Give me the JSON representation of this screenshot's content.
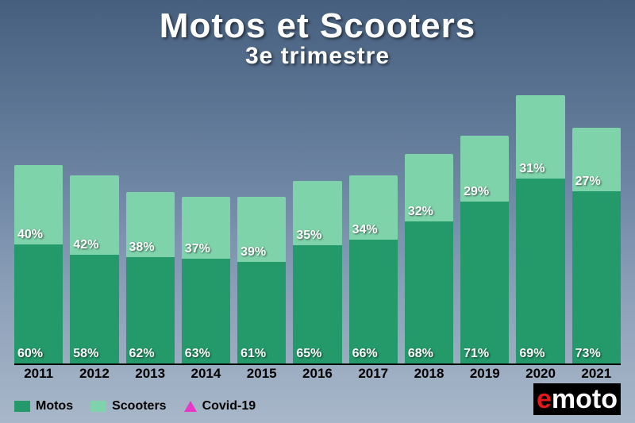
{
  "title": "Motos et Scooters",
  "subtitle": "3e trimestre",
  "title_fontsize": 44,
  "subtitle_fontsize": 30,
  "chart": {
    "type": "bar-stacked-100",
    "categories": [
      "2011",
      "2012",
      "2013",
      "2014",
      "2015",
      "2016",
      "2017",
      "2018",
      "2019",
      "2020",
      "2021"
    ],
    "motos_pct": [
      60,
      58,
      62,
      63,
      61,
      65,
      66,
      68,
      71,
      69,
      73
    ],
    "scooters_pct": [
      40,
      42,
      38,
      37,
      39,
      35,
      34,
      32,
      29,
      31,
      27
    ],
    "bar_totals_rel": [
      0.74,
      0.7,
      0.64,
      0.62,
      0.62,
      0.68,
      0.7,
      0.78,
      0.85,
      1.0,
      0.88
    ],
    "motos_color": "#24996a",
    "scooters_color": "#7fd3ab",
    "pct_fontsize": 16,
    "xlabel_fontsize": 17,
    "covid_marker_index": 9,
    "covid_marker_color": "#e836c8"
  },
  "legend": {
    "items": [
      {
        "label": "Motos",
        "color": "#24996a",
        "shape": "square"
      },
      {
        "label": "Scooters",
        "color": "#7fd3ab",
        "shape": "square"
      },
      {
        "label": "Covid-19",
        "color": "#e836c8",
        "shape": "triangle"
      }
    ],
    "fontsize": 16
  },
  "logo": {
    "text_e": "e",
    "text_rest": "moto",
    "fontsize": 34
  }
}
